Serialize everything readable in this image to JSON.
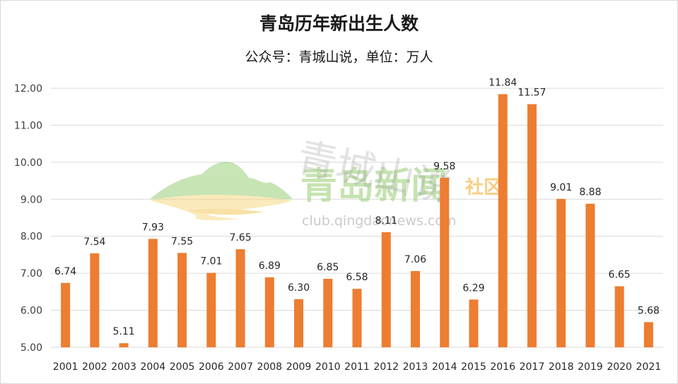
{
  "chart_data": {
    "type": "bar",
    "title": "青岛历年新出生人数",
    "subtitle": "公众号：青城山说，单位：万人",
    "categories": [
      "2001",
      "2002",
      "2003",
      "2004",
      "2005",
      "2006",
      "2007",
      "2008",
      "2009",
      "2010",
      "2011",
      "2012",
      "2013",
      "2014",
      "2015",
      "2016",
      "2017",
      "2018",
      "2019",
      "2020",
      "2021"
    ],
    "values": [
      6.74,
      7.54,
      5.11,
      7.93,
      7.55,
      7.01,
      7.65,
      6.89,
      6.3,
      6.85,
      6.58,
      8.11,
      7.06,
      9.58,
      6.29,
      11.84,
      11.57,
      9.01,
      8.88,
      6.65,
      5.68
    ],
    "value_labels": [
      "6.74",
      "7.54",
      "5.11",
      "7.93",
      "7.55",
      "7.01",
      "7.65",
      "6.89",
      "6.30",
      "6.85",
      "6.58",
      "8.11",
      "7.06",
      "9.58",
      "6.29",
      "11.84",
      "11.57",
      "9.01",
      "8.88",
      "6.65",
      "5.68"
    ],
    "yticks": [
      "5.00",
      "6.00",
      "7.00",
      "8.00",
      "9.00",
      "10.00",
      "11.00",
      "12.00"
    ],
    "ylim": [
      5,
      12
    ],
    "grid": true,
    "bar_color": "#ed7d31"
  },
  "watermark": {
    "logo_text": "青岛新闻",
    "community": "社区",
    "url": "club.qingdaonews.com",
    "handwriting": "青城山说"
  }
}
